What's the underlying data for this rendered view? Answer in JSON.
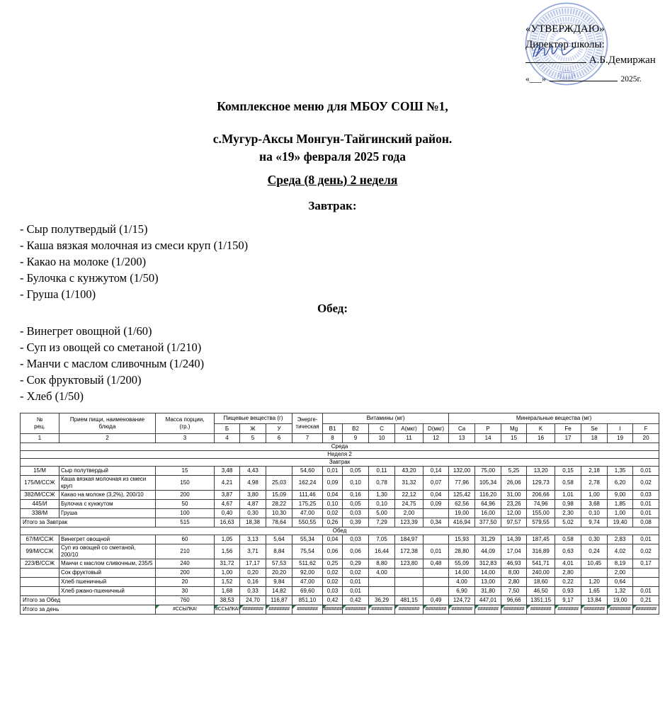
{
  "approval": {
    "approve_label": "«УТВЕРЖДАЮ»",
    "role_label": "Директор школы:",
    "director_name": "А.Б.Демиржан",
    "date_quotes": "«___»",
    "year_suffix": "2025г."
  },
  "title": {
    "line1": "Комплексное меню для МБОУ СОШ №1,",
    "line2": "с.Мугур-Аксы Монгун-Тайгинский район.",
    "line3": "на «19» февраля 2025 года",
    "day_line": "Среда (8 день) 2 неделя"
  },
  "menu": {
    "breakfast": {
      "heading": "Завтрак:",
      "items": [
        "- Сыр полутвердый (1/15)",
        "- Каша вязкая молочная из смеси круп (1/150)",
        "- Какао на молоке (1/200)",
        "- Булочка с кунжутом (1/50)",
        "- Груша (1/100)"
      ]
    },
    "lunch": {
      "heading": "Обед:",
      "items": [
        "- Винегрет овощной (1/60)",
        "- Суп из овощей со сметаной (1/210)",
        "- Манчи с маслом сливочным (1/240)",
        "- Сок фруктовый (1/200)",
        "- Хлеб (1/50)"
      ]
    }
  },
  "colors": {
    "stamp_blue": "#4f6fc0",
    "signature_blue": "#3550a8",
    "error_marker_green": "#1d7a3c"
  },
  "table": {
    "header": {
      "col1": [
        "№",
        "рец."
      ],
      "col2": [
        "Прием пищи, наименование",
        "блюда"
      ],
      "col3": [
        "Масса порции,",
        "(гр.)"
      ],
      "food_group": "Пищевые вещества (г)",
      "energy": [
        "Энерге-",
        "тическая"
      ],
      "vitamins_group": "Витамины (мг)",
      "minerals_group": "Минеральные вещества (мг)",
      "sub": [
        "Б",
        "Ж",
        "У",
        "B1",
        "B2",
        "C",
        "А(мкг)",
        "D(мкг)",
        "Ca",
        "P",
        "Mg",
        "K",
        "Fe",
        "Se",
        "I",
        "F"
      ],
      "numbers": [
        "1",
        "2",
        "3",
        "4",
        "5",
        "6",
        "7",
        "8",
        "9",
        "10",
        "11",
        "12",
        "13",
        "14",
        "15",
        "16",
        "17",
        "18",
        "19",
        "20"
      ]
    },
    "rows": [
      {
        "type": "section",
        "label": "Среда"
      },
      {
        "type": "section",
        "label": "Неделя 2"
      },
      {
        "type": "section",
        "label": "Завтрак"
      },
      {
        "type": "dish",
        "code": "15/М",
        "name": "Сыр полутвердый",
        "values": [
          "15",
          "3,48",
          "4,43",
          "",
          "54,60",
          "0,01",
          "0,05",
          "0,11",
          "43,20",
          "0,14",
          "132,00",
          "75,00",
          "5,25",
          "13,20",
          "0,15",
          "2,18",
          "1,35",
          "0,01"
        ]
      },
      {
        "type": "dish",
        "code": "175/М/ССЖ",
        "name": "Каша вязкая молочная из смеси круп",
        "values": [
          "150",
          "4,21",
          "4,98",
          "25,03",
          "162,24",
          "0,09",
          "0,10",
          "0,78",
          "31,32",
          "0,07",
          "77,96",
          "105,34",
          "26,06",
          "129,73",
          "0,58",
          "2,78",
          "6,20",
          "0,02"
        ]
      },
      {
        "type": "dish",
        "code": "382/М/ССЖ",
        "name": "Какао на молоке (3,2%), 200/10",
        "values": [
          "200",
          "3,87",
          "3,80",
          "15,09",
          "111,46",
          "0,04",
          "0,16",
          "1,30",
          "22,12",
          "0,04",
          "125,42",
          "116,20",
          "31,00",
          "206,66",
          "1,01",
          "1,00",
          "9,00",
          "0,03"
        ]
      },
      {
        "type": "dish",
        "code": "445/И",
        "name": "Булочка с кунжутом",
        "values": [
          "50",
          "4,67",
          "4,87",
          "28,22",
          "175,25",
          "0,10",
          "0,05",
          "0,10",
          "24,75",
          "0,09",
          "62,56",
          "64,96",
          "23,26",
          "74,96",
          "0,98",
          "3,68",
          "1,85",
          "0,01"
        ]
      },
      {
        "type": "dish",
        "code": "338/М",
        "name": "Груша",
        "values": [
          "100",
          "0,40",
          "0,30",
          "10,30",
          "47,00",
          "0,02",
          "0,03",
          "5,00",
          "2,00",
          "",
          "19,00",
          "16,00",
          "12,00",
          "155,00",
          "2,30",
          "0,10",
          "1,00",
          "0,01"
        ]
      },
      {
        "type": "total",
        "label": "Итого за Завтрак",
        "values": [
          "515",
          "16,63",
          "18,38",
          "78,64",
          "550,55",
          "0,26",
          "0,39",
          "7,29",
          "123,39",
          "0,34",
          "416,94",
          "377,50",
          "97,57",
          "579,55",
          "5,02",
          "9,74",
          "19,40",
          "0,08"
        ]
      },
      {
        "type": "section",
        "label": "Обед"
      },
      {
        "type": "dish",
        "code": "67/М/ССЖ",
        "name": "Винегрет овощной",
        "values": [
          "60",
          "1,05",
          "3,13",
          "5,64",
          "55,34",
          "0,04",
          "0,03",
          "7,05",
          "184,97",
          "",
          "15,93",
          "31,29",
          "14,39",
          "187,45",
          "0,58",
          "0,30",
          "2,83",
          "0,01"
        ]
      },
      {
        "type": "dish",
        "code": "99/М/ССЖ",
        "name": "Суп из овощей со сметаной, 200/10",
        "values": [
          "210",
          "1,56",
          "3,71",
          "8,84",
          "75,54",
          "0,06",
          "0,06",
          "16,44",
          "172,38",
          "0,01",
          "28,80",
          "44,09",
          "17,04",
          "316,89",
          "0,63",
          "0,24",
          "4,02",
          "0,02"
        ]
      },
      {
        "type": "dish",
        "code": "223/В/ССЖ",
        "name": "Манчи с маслом сливочным, 235/5",
        "values": [
          "240",
          "31,72",
          "17,17",
          "57,53",
          "511,62",
          "0,25",
          "0,29",
          "8,80",
          "123,80",
          "0,48",
          "55,09",
          "312,83",
          "46,93",
          "541,71",
          "4,01",
          "10,45",
          "8,19",
          "0,17"
        ]
      },
      {
        "type": "dish",
        "code": "",
        "name": "Сок фруктовый",
        "values": [
          "200",
          "1,00",
          "0,20",
          "20,20",
          "92,00",
          "0,02",
          "0,02",
          "4,00",
          "",
          "",
          "14,00",
          "14,00",
          "8,00",
          "240,00",
          "2,80",
          "",
          "2,00",
          ""
        ]
      },
      {
        "type": "dish",
        "code": "",
        "name": "Хлеб пшеничный",
        "values": [
          "20",
          "1,52",
          "0,16",
          "9,84",
          "47,00",
          "0,02",
          "0,01",
          "",
          "",
          "",
          "4,00",
          "13,00",
          "2,80",
          "18,60",
          "0,22",
          "1,20",
          "0,64",
          ""
        ]
      },
      {
        "type": "dish",
        "code": "",
        "name": "Хлеб ржано-пшеничный",
        "values": [
          "30",
          "1,68",
          "0,33",
          "14,82",
          "69,60",
          "0,03",
          "0,01",
          "",
          "",
          "",
          "6,90",
          "31,80",
          "7,50",
          "46,50",
          "0,93",
          "1,65",
          "1,32",
          "0,01"
        ]
      },
      {
        "type": "total",
        "label": "Итого за Обед",
        "values": [
          "760",
          "38,53",
          "24,70",
          "116,87",
          "851,10",
          "0,42",
          "0,42",
          "36,29",
          "481,15",
          "0,49",
          "124,72",
          "447,01",
          "96,66",
          "1351,15",
          "9,17",
          "13,84",
          "19,00",
          "0,21"
        ]
      },
      {
        "type": "total",
        "label": "Итого за день",
        "error": true,
        "values": [
          "#ССЫЛКА!",
          "#ССЫЛКА!",
          "########",
          "########",
          "########",
          "########",
          "########",
          "########",
          "########",
          "########",
          "########",
          "########",
          "########",
          "########",
          "########",
          "########",
          "########",
          "########"
        ]
      }
    ]
  }
}
